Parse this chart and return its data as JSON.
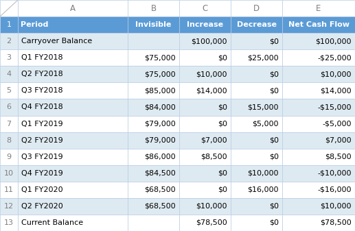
{
  "col_headers": [
    "",
    "A",
    "B",
    "C",
    "D",
    "E"
  ],
  "headers": [
    "Period",
    "Invisible",
    "Increase",
    "Decrease",
    "Net Cash Flow"
  ],
  "rows": [
    [
      "Carryover Balance",
      "",
      "$100,000",
      "$0",
      "$100,000"
    ],
    [
      "Q1 FY2018",
      "$75,000",
      "$0",
      "$25,000",
      "-$25,000"
    ],
    [
      "Q2 FY2018",
      "$75,000",
      "$10,000",
      "$0",
      "$10,000"
    ],
    [
      "Q3 FY2018",
      "$85,000",
      "$14,000",
      "$0",
      "$14,000"
    ],
    [
      "Q4 FY2018",
      "$84,000",
      "$0",
      "$15,000",
      "-$15,000"
    ],
    [
      "Q1 FY2019",
      "$79,000",
      "$0",
      "$5,000",
      "-$5,000"
    ],
    [
      "Q2 FY2019",
      "$79,000",
      "$7,000",
      "$0",
      "$7,000"
    ],
    [
      "Q3 FY2019",
      "$86,000",
      "$8,500",
      "$0",
      "$8,500"
    ],
    [
      "Q4 FY2019",
      "$84,500",
      "$0",
      "$10,000",
      "-$10,000"
    ],
    [
      "Q1 FY2020",
      "$68,500",
      "$0",
      "$16,000",
      "-$16,000"
    ],
    [
      "Q2 FY2020",
      "$68,500",
      "$10,000",
      "$0",
      "$10,000"
    ],
    [
      "Current Balance",
      "",
      "$78,500",
      "$0",
      "$78,500"
    ]
  ],
  "header_bg": "#5B9BD5",
  "header_text": "#FFFFFF",
  "row_bg_even": "#DEEAF1",
  "row_bg_odd": "#FFFFFF",
  "col_header_bg": "#FFFFFF",
  "col_header_text": "#7F7F7F",
  "row_num_text": "#7F7F7F",
  "border_color": "#B8CCE4",
  "text_color": "#000000",
  "figsize": [
    5.17,
    3.37
  ],
  "dpi": 100,
  "total_rows": 14,
  "corner_triangle_color": "#BFBFBF"
}
